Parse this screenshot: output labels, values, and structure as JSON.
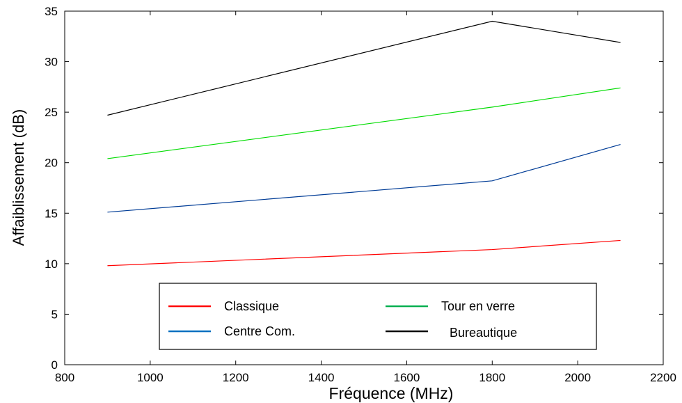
{
  "chart_data": {
    "type": "line",
    "title": "",
    "xlabel": "Fréquence (MHz)",
    "ylabel": "Affaiblissement (dB)",
    "xlim": [
      800,
      2200
    ],
    "ylim": [
      0,
      35
    ],
    "x_ticks": [
      800,
      1000,
      1200,
      1400,
      1600,
      1800,
      2000,
      2200
    ],
    "y_ticks": [
      0,
      5,
      10,
      15,
      20,
      25,
      30,
      35
    ],
    "x": [
      900,
      1800,
      2100
    ],
    "series": [
      {
        "name": "Classique",
        "values": [
          9.8,
          11.4,
          12.3
        ],
        "color": "#ff0000"
      },
      {
        "name": "Centre Com.",
        "values": [
          15.1,
          18.2,
          21.8
        ],
        "color": "#003c96"
      },
      {
        "name": "Tour en verre",
        "values": [
          20.4,
          25.5,
          27.4
        ],
        "color": "#00dc00"
      },
      {
        "name": "Bureautique",
        "values": [
          24.7,
          34.0,
          31.9
        ],
        "color": "#000000"
      }
    ],
    "legend": {
      "position": "lower-center",
      "entries": [
        {
          "label": "Classique",
          "color": "#ff0000"
        },
        {
          "label": "Tour en verre",
          "color": "#00b050"
        },
        {
          "label": "Centre Com.",
          "color": "#0070c0"
        },
        {
          "label": "Bureautique",
          "color": "#000000"
        }
      ]
    },
    "grid": false
  }
}
